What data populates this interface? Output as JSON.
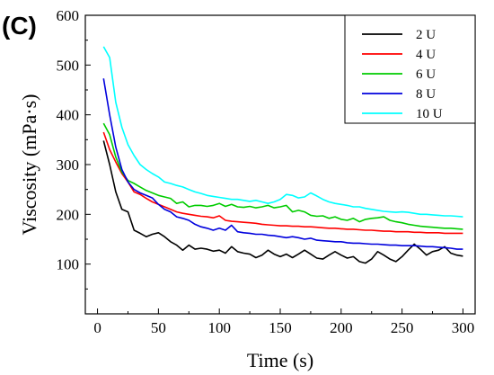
{
  "panel_label": "(C)",
  "chart_data": {
    "type": "line",
    "xlabel": "Time (s)",
    "ylabel": "Viscosity (mPa·s)",
    "xlim": [
      -10,
      310
    ],
    "ylim": [
      0,
      600
    ],
    "x_ticks": [
      0,
      50,
      100,
      150,
      200,
      250,
      300
    ],
    "y_ticks": [
      100,
      200,
      300,
      400,
      500,
      600
    ],
    "grid": false,
    "legend_position": "top-right",
    "series": [
      {
        "name": "2 U",
        "color": "#000000",
        "points": [
          [
            5,
            348
          ],
          [
            10,
            300
          ],
          [
            15,
            245
          ],
          [
            20,
            210
          ],
          [
            25,
            205
          ],
          [
            30,
            168
          ],
          [
            35,
            162
          ],
          [
            40,
            155
          ],
          [
            45,
            160
          ],
          [
            50,
            163
          ],
          [
            55,
            155
          ],
          [
            60,
            145
          ],
          [
            65,
            138
          ],
          [
            70,
            128
          ],
          [
            75,
            138
          ],
          [
            80,
            130
          ],
          [
            85,
            132
          ],
          [
            90,
            130
          ],
          [
            95,
            126
          ],
          [
            100,
            128
          ],
          [
            105,
            122
          ],
          [
            110,
            135
          ],
          [
            115,
            125
          ],
          [
            120,
            122
          ],
          [
            125,
            120
          ],
          [
            130,
            113
          ],
          [
            135,
            118
          ],
          [
            140,
            128
          ],
          [
            145,
            120
          ],
          [
            150,
            115
          ],
          [
            155,
            120
          ],
          [
            160,
            113
          ],
          [
            165,
            120
          ],
          [
            170,
            128
          ],
          [
            175,
            120
          ],
          [
            180,
            112
          ],
          [
            185,
            110
          ],
          [
            190,
            118
          ],
          [
            195,
            125
          ],
          [
            200,
            118
          ],
          [
            205,
            112
          ],
          [
            210,
            115
          ],
          [
            215,
            105
          ],
          [
            220,
            102
          ],
          [
            225,
            110
          ],
          [
            230,
            125
          ],
          [
            235,
            118
          ],
          [
            240,
            110
          ],
          [
            245,
            105
          ],
          [
            250,
            115
          ],
          [
            255,
            128
          ],
          [
            260,
            140
          ],
          [
            265,
            130
          ],
          [
            270,
            118
          ],
          [
            275,
            125
          ],
          [
            280,
            128
          ],
          [
            285,
            135
          ],
          [
            290,
            122
          ],
          [
            295,
            118
          ],
          [
            300,
            116
          ]
        ]
      },
      {
        "name": "4 U",
        "color": "#ff0000",
        "points": [
          [
            5,
            365
          ],
          [
            10,
            330
          ],
          [
            15,
            305
          ],
          [
            20,
            282
          ],
          [
            25,
            265
          ],
          [
            30,
            245
          ],
          [
            35,
            240
          ],
          [
            40,
            232
          ],
          [
            45,
            225
          ],
          [
            50,
            220
          ],
          [
            55,
            215
          ],
          [
            60,
            210
          ],
          [
            65,
            205
          ],
          [
            70,
            202
          ],
          [
            75,
            200
          ],
          [
            80,
            198
          ],
          [
            85,
            196
          ],
          [
            90,
            195
          ],
          [
            95,
            193
          ],
          [
            100,
            197
          ],
          [
            105,
            188
          ],
          [
            110,
            186
          ],
          [
            115,
            185
          ],
          [
            120,
            184
          ],
          [
            125,
            183
          ],
          [
            130,
            182
          ],
          [
            135,
            180
          ],
          [
            140,
            179
          ],
          [
            145,
            178
          ],
          [
            150,
            177
          ],
          [
            155,
            177
          ],
          [
            160,
            176
          ],
          [
            165,
            176
          ],
          [
            170,
            175
          ],
          [
            175,
            175
          ],
          [
            180,
            174
          ],
          [
            185,
            173
          ],
          [
            190,
            172
          ],
          [
            195,
            172
          ],
          [
            200,
            171
          ],
          [
            205,
            170
          ],
          [
            210,
            170
          ],
          [
            215,
            169
          ],
          [
            220,
            168
          ],
          [
            225,
            168
          ],
          [
            230,
            167
          ],
          [
            235,
            166
          ],
          [
            240,
            166
          ],
          [
            245,
            165
          ],
          [
            250,
            165
          ],
          [
            255,
            165
          ],
          [
            260,
            164
          ],
          [
            265,
            164
          ],
          [
            270,
            163
          ],
          [
            275,
            163
          ],
          [
            280,
            163
          ],
          [
            285,
            162
          ],
          [
            290,
            162
          ],
          [
            295,
            162
          ],
          [
            300,
            162
          ]
        ]
      },
      {
        "name": "6 U",
        "color": "#00cc00",
        "points": [
          [
            5,
            383
          ],
          [
            10,
            360
          ],
          [
            15,
            315
          ],
          [
            20,
            285
          ],
          [
            25,
            268
          ],
          [
            30,
            262
          ],
          [
            35,
            255
          ],
          [
            40,
            248
          ],
          [
            45,
            243
          ],
          [
            50,
            238
          ],
          [
            55,
            235
          ],
          [
            60,
            232
          ],
          [
            65,
            222
          ],
          [
            70,
            225
          ],
          [
            75,
            215
          ],
          [
            80,
            218
          ],
          [
            85,
            218
          ],
          [
            90,
            216
          ],
          [
            95,
            218
          ],
          [
            100,
            222
          ],
          [
            105,
            216
          ],
          [
            110,
            220
          ],
          [
            115,
            215
          ],
          [
            120,
            214
          ],
          [
            125,
            216
          ],
          [
            130,
            213
          ],
          [
            135,
            215
          ],
          [
            140,
            218
          ],
          [
            145,
            213
          ],
          [
            150,
            215
          ],
          [
            155,
            218
          ],
          [
            160,
            205
          ],
          [
            165,
            208
          ],
          [
            170,
            205
          ],
          [
            175,
            198
          ],
          [
            180,
            196
          ],
          [
            185,
            197
          ],
          [
            190,
            192
          ],
          [
            195,
            195
          ],
          [
            200,
            190
          ],
          [
            205,
            188
          ],
          [
            210,
            192
          ],
          [
            215,
            185
          ],
          [
            220,
            190
          ],
          [
            225,
            192
          ],
          [
            230,
            193
          ],
          [
            235,
            195
          ],
          [
            240,
            188
          ],
          [
            245,
            185
          ],
          [
            250,
            183
          ],
          [
            255,
            180
          ],
          [
            260,
            178
          ],
          [
            265,
            176
          ],
          [
            270,
            175
          ],
          [
            275,
            174
          ],
          [
            280,
            173
          ],
          [
            285,
            172
          ],
          [
            290,
            172
          ],
          [
            295,
            171
          ],
          [
            300,
            170
          ]
        ]
      },
      {
        "name": "8 U",
        "color": "#0000dd",
        "points": [
          [
            5,
            473
          ],
          [
            10,
            400
          ],
          [
            15,
            335
          ],
          [
            20,
            290
          ],
          [
            25,
            265
          ],
          [
            30,
            250
          ],
          [
            35,
            243
          ],
          [
            40,
            238
          ],
          [
            45,
            233
          ],
          [
            50,
            220
          ],
          [
            55,
            210
          ],
          [
            60,
            205
          ],
          [
            65,
            195
          ],
          [
            70,
            192
          ],
          [
            75,
            188
          ],
          [
            80,
            180
          ],
          [
            85,
            175
          ],
          [
            90,
            172
          ],
          [
            95,
            168
          ],
          [
            100,
            172
          ],
          [
            105,
            168
          ],
          [
            110,
            178
          ],
          [
            115,
            165
          ],
          [
            120,
            163
          ],
          [
            125,
            162
          ],
          [
            130,
            160
          ],
          [
            135,
            160
          ],
          [
            140,
            158
          ],
          [
            145,
            157
          ],
          [
            150,
            155
          ],
          [
            155,
            153
          ],
          [
            160,
            155
          ],
          [
            165,
            153
          ],
          [
            170,
            150
          ],
          [
            175,
            152
          ],
          [
            180,
            148
          ],
          [
            185,
            147
          ],
          [
            190,
            146
          ],
          [
            195,
            145
          ],
          [
            200,
            145
          ],
          [
            205,
            143
          ],
          [
            210,
            142
          ],
          [
            215,
            142
          ],
          [
            220,
            141
          ],
          [
            225,
            140
          ],
          [
            230,
            140
          ],
          [
            235,
            139
          ],
          [
            240,
            138
          ],
          [
            245,
            138
          ],
          [
            250,
            137
          ],
          [
            255,
            137
          ],
          [
            260,
            137
          ],
          [
            265,
            136
          ],
          [
            270,
            135
          ],
          [
            275,
            135
          ],
          [
            280,
            134
          ],
          [
            285,
            133
          ],
          [
            290,
            132
          ],
          [
            295,
            130
          ],
          [
            300,
            130
          ]
        ]
      },
      {
        "name": "10 U",
        "color": "#00ffff",
        "points": [
          [
            5,
            537
          ],
          [
            10,
            515
          ],
          [
            15,
            425
          ],
          [
            20,
            375
          ],
          [
            25,
            340
          ],
          [
            30,
            318
          ],
          [
            35,
            300
          ],
          [
            40,
            290
          ],
          [
            45,
            282
          ],
          [
            50,
            275
          ],
          [
            55,
            265
          ],
          [
            60,
            262
          ],
          [
            65,
            258
          ],
          [
            70,
            255
          ],
          [
            75,
            250
          ],
          [
            80,
            245
          ],
          [
            85,
            242
          ],
          [
            90,
            238
          ],
          [
            95,
            236
          ],
          [
            100,
            234
          ],
          [
            105,
            232
          ],
          [
            110,
            230
          ],
          [
            115,
            230
          ],
          [
            120,
            228
          ],
          [
            125,
            226
          ],
          [
            130,
            228
          ],
          [
            135,
            225
          ],
          [
            140,
            222
          ],
          [
            145,
            225
          ],
          [
            150,
            230
          ],
          [
            155,
            240
          ],
          [
            160,
            238
          ],
          [
            165,
            233
          ],
          [
            170,
            235
          ],
          [
            175,
            243
          ],
          [
            180,
            237
          ],
          [
            185,
            230
          ],
          [
            190,
            225
          ],
          [
            195,
            222
          ],
          [
            200,
            220
          ],
          [
            205,
            218
          ],
          [
            210,
            215
          ],
          [
            215,
            215
          ],
          [
            220,
            212
          ],
          [
            225,
            210
          ],
          [
            230,
            208
          ],
          [
            235,
            206
          ],
          [
            240,
            205
          ],
          [
            245,
            204
          ],
          [
            250,
            205
          ],
          [
            255,
            204
          ],
          [
            260,
            202
          ],
          [
            265,
            200
          ],
          [
            270,
            200
          ],
          [
            275,
            199
          ],
          [
            280,
            198
          ],
          [
            285,
            197
          ],
          [
            290,
            197
          ],
          [
            295,
            196
          ],
          [
            300,
            195
          ]
        ]
      }
    ]
  }
}
